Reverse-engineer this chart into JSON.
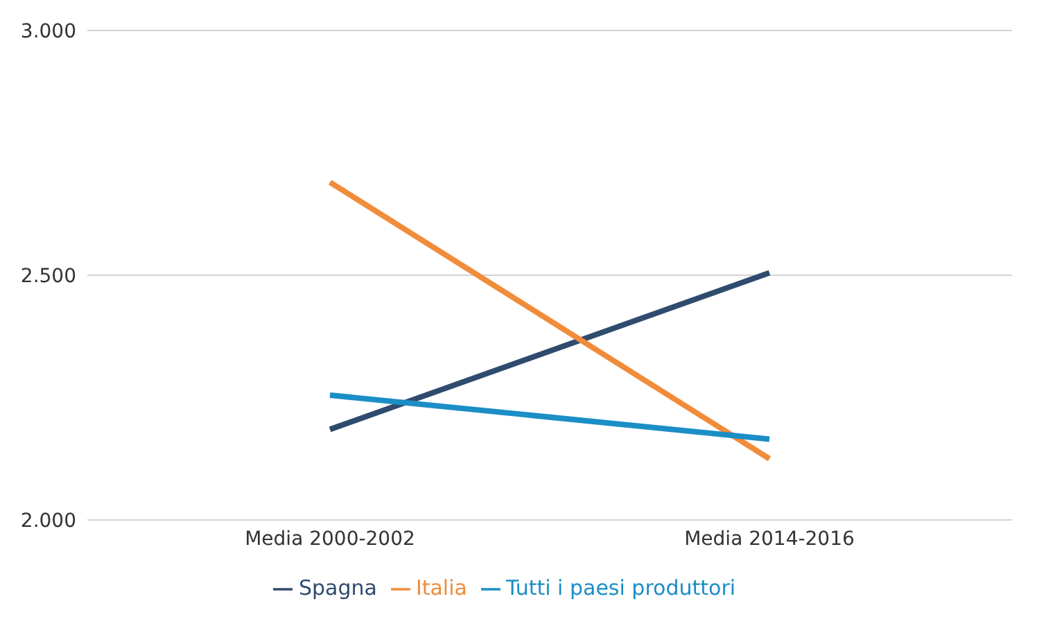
{
  "chart_data": {
    "type": "line",
    "categories": [
      "Media 2000-2002",
      "Media 2014-2016"
    ],
    "series": [
      {
        "name": "Spagna",
        "color": "#2f4b6e",
        "values": [
          2185,
          2505
        ]
      },
      {
        "name": "Italia",
        "color": "#f08c3a",
        "values": [
          2690,
          2125
        ]
      },
      {
        "name": "Tutti i paesi produttori",
        "color": "#1b8ec6",
        "values": [
          2255,
          2165
        ]
      }
    ],
    "ylim": [
      2000,
      3000
    ],
    "yticks": [
      {
        "value": 2000,
        "label": "2.000"
      },
      {
        "value": 2500,
        "label": "2.500"
      },
      {
        "value": 3000,
        "label": "3.000"
      }
    ],
    "grid": "y",
    "legend": "bottom",
    "marker": "none",
    "line_style": "solid"
  }
}
